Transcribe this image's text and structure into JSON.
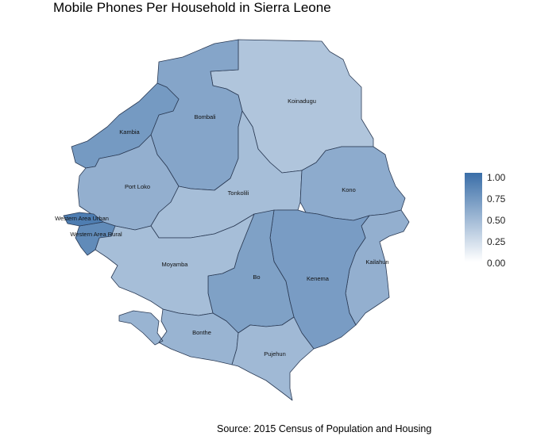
{
  "title": "Mobile Phones Per Household in Sierra Leone",
  "caption": "Source: 2015 Census of Population and Housing",
  "legend": {
    "ticks": [
      "1.00",
      "0.75",
      "0.50",
      "0.25",
      "0.00"
    ],
    "color_low": "#ffffff",
    "color_high": "#3a6ea8"
  },
  "regions": {
    "koinadugu": {
      "label": "Koinadugu",
      "value": 0.4
    },
    "bombali": {
      "label": "Bombali",
      "value": 0.62
    },
    "kambia": {
      "label": "Kambia",
      "value": 0.7
    },
    "port_loko": {
      "label": "Port Loko",
      "value": 0.55
    },
    "tonkolili": {
      "label": "Tonkolili",
      "value": 0.45
    },
    "kono": {
      "label": "Kono",
      "value": 0.58
    },
    "kailahun": {
      "label": "Kailahun",
      "value": 0.55
    },
    "kenema": {
      "label": "Kenema",
      "value": 0.68
    },
    "bo": {
      "label": "Bo",
      "value": 0.65
    },
    "moyamba": {
      "label": "Moyamba",
      "value": 0.45
    },
    "pujehun": {
      "label": "Pujehun",
      "value": 0.48
    },
    "bonthe": {
      "label": "Bonthe",
      "value": 0.52
    },
    "western_urban": {
      "label": "Western Area Urban",
      "value": 0.9
    },
    "western_rural": {
      "label": "Western Area Rural",
      "value": 0.8
    }
  }
}
